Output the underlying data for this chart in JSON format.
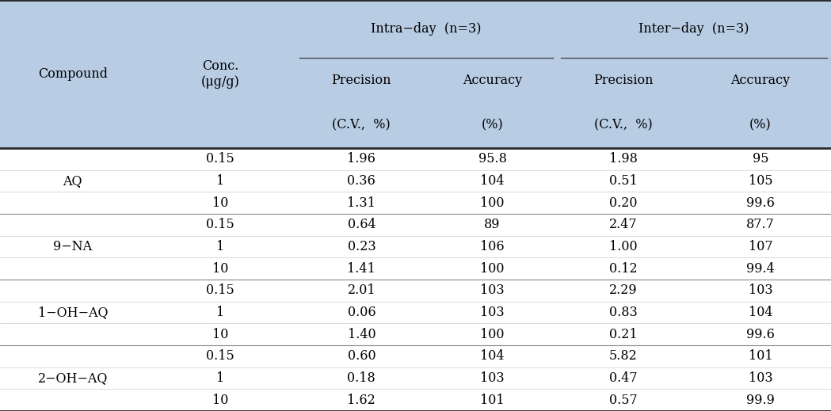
{
  "header_bg_color": "#b8cce4",
  "bg_color": "#ffffff",
  "text_color": "#000000",
  "fig_width": 10.49,
  "fig_height": 5.19,
  "col1_header": "Compound",
  "col2_header": "Conc.\n(μg/g)",
  "intraday_header": "Intra−day  (n=3)",
  "interday_header": "Inter−day  (n=3)",
  "intraday_sub1": "Precision",
  "intraday_sub2": "Accuracy",
  "interday_sub1": "Precision",
  "interday_sub2": "Accuracy",
  "sub_sub1": "(C.V.,  %)",
  "sub_sub2": "(%)",
  "sub_sub3": "(C.V.,  %)",
  "sub_sub4": "(%)",
  "compounds": [
    "AQ",
    "9−NA",
    "1−OH−AQ",
    "2−OH−AQ"
  ],
  "compound_rows": [
    3,
    3,
    3,
    3
  ],
  "conc": [
    "0.15",
    "1",
    "10",
    "0.15",
    "1",
    "10",
    "0.15",
    "1",
    "10",
    "0.15",
    "1",
    "10"
  ],
  "intra_precision": [
    "1.96",
    "0.36",
    "1.31",
    "0.64",
    "0.23",
    "1.41",
    "2.01",
    "0.06",
    "1.40",
    "0.60",
    "0.18",
    "1.62"
  ],
  "intra_accuracy": [
    "95.8",
    "104",
    "100",
    "89",
    "106",
    "100",
    "103",
    "103",
    "100",
    "104",
    "103",
    "101"
  ],
  "inter_precision": [
    "1.98",
    "0.51",
    "0.20",
    "2.47",
    "1.00",
    "0.12",
    "2.29",
    "0.83",
    "0.21",
    "5.82",
    "0.47",
    "0.57"
  ],
  "inter_accuracy": [
    "95",
    "105",
    "99.6",
    "87.7",
    "107",
    "99.4",
    "103",
    "104",
    "99.6",
    "101",
    "103",
    "99.9"
  ]
}
